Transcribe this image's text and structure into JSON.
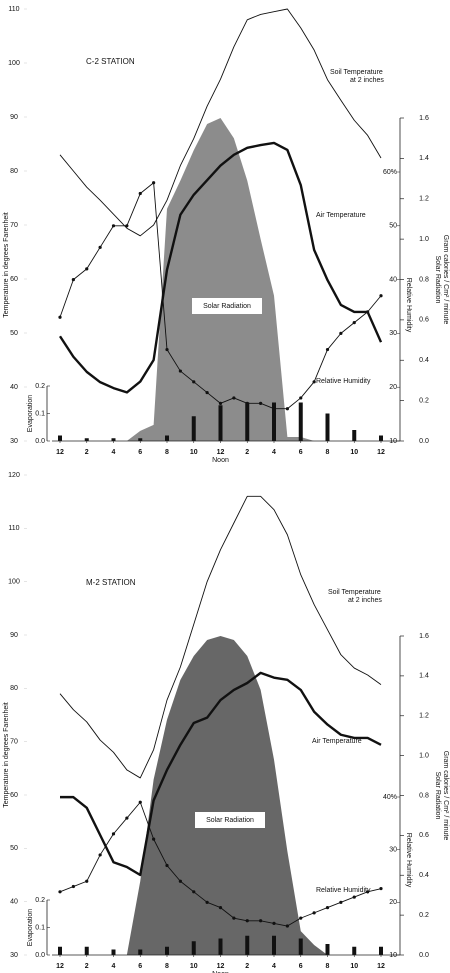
{
  "chart_data": [
    {
      "type": "line",
      "title": "C-2 STATION",
      "y_label": "Temperature in degrees Farenheit",
      "y2_label": [
        "Solar Radiation",
        "Gram calories / Cm² / minute"
      ],
      "y3_label": "Relative Humidity",
      "x_note": "Noon",
      "xlim": [
        0,
        24
      ],
      "xticks": [
        {
          "value": 0,
          "label": "12"
        },
        2,
        4,
        6,
        8,
        10,
        12,
        {
          "value": 14,
          "label": "2"
        },
        {
          "value": 16,
          "label": "4"
        },
        {
          "value": 18,
          "label": "6"
        },
        {
          "value": 20,
          "label": "8"
        },
        {
          "value": 22,
          "label": "10"
        },
        {
          "value": 24,
          "label": "12"
        }
      ],
      "ylim": [
        30,
        110
      ],
      "yticks": [
        30,
        40,
        50,
        60,
        70,
        80,
        90,
        100,
        110
      ],
      "y2lim": [
        0,
        1.6
      ],
      "y2ticks": [
        {
          "value": 0,
          "label": "0.0"
        },
        0.2,
        0.4,
        0.6,
        0.8,
        {
          "value": 1,
          "label": "1.0"
        },
        1.2,
        1.4,
        1.6
      ],
      "y3lim": [
        10,
        60
      ],
      "y3ticks": [
        10,
        20,
        30,
        40,
        50,
        {
          "value": 60,
          "label": "60%"
        }
      ],
      "y4lim": [
        0,
        0.2
      ],
      "y4ticks": [
        {
          "value": 0,
          "label": "0.0"
        },
        0.1,
        0.2
      ],
      "series": [
        {
          "name": "Solar Radiation",
          "style": "area",
          "axis": "y2",
          "color": "#8c8c8c",
          "x": [
            0,
            1,
            2,
            3,
            4,
            5,
            6,
            7,
            8,
            9,
            10,
            11,
            12,
            13,
            14,
            15,
            16,
            17,
            18,
            19,
            20,
            21,
            22,
            23,
            24
          ],
          "values": [
            0,
            0,
            0,
            0,
            0,
            0,
            0.05,
            0.08,
            1.15,
            1.29,
            1.44,
            1.57,
            1.6,
            1.5,
            1.29,
            1.0,
            0.72,
            0.02,
            0.02,
            0,
            0,
            0,
            0,
            0,
            0
          ]
        },
        {
          "name": "Soil Temperature",
          "subtitle": "at 2 inches",
          "style": "line",
          "axis": "y",
          "color": "#111111",
          "width": 0.9,
          "x": [
            0,
            1,
            2,
            3,
            4,
            5,
            6,
            7,
            8,
            9,
            10,
            11,
            12,
            13,
            14,
            15,
            16,
            17,
            18,
            19,
            20,
            21,
            22,
            23,
            24
          ],
          "values": [
            83,
            80,
            77,
            74.6,
            72,
            69.4,
            68,
            70,
            74.6,
            81,
            86,
            92,
            97,
            103,
            108,
            109,
            109.5,
            110,
            106.5,
            102.4,
            96.9,
            93.1,
            89.4,
            86.6,
            82.4
          ]
        },
        {
          "name": "Air Temperature",
          "style": "line",
          "axis": "y",
          "color": "#111111",
          "width": 2.4,
          "x": [
            0,
            1,
            2,
            3,
            4,
            5,
            6,
            7,
            8,
            9,
            10,
            11,
            12,
            13,
            14,
            15,
            16,
            17,
            18,
            19,
            20,
            21,
            22,
            23,
            24
          ],
          "values": [
            49.4,
            45.6,
            42.8,
            40.9,
            39.8,
            39,
            41,
            45,
            61.7,
            71.9,
            75.6,
            78.3,
            81,
            83,
            84.3,
            84.8,
            85.2,
            83.9,
            77.4,
            65.4,
            59.8,
            55.2,
            53.9,
            53.9,
            48.3
          ]
        },
        {
          "name": "Relative Humidity",
          "style": "dots",
          "axis": "y3",
          "color": "#111111",
          "width": 0.9,
          "x": [
            0,
            1,
            2,
            3,
            4,
            5,
            6,
            7,
            8,
            9,
            10,
            11,
            12,
            13,
            14,
            15,
            16,
            17,
            18,
            19,
            20,
            21,
            22,
            23,
            24
          ],
          "values": [
            33,
            40,
            42,
            46,
            50,
            50,
            56,
            58,
            27,
            23,
            21,
            19,
            17,
            18,
            17,
            17,
            16,
            16,
            18,
            21,
            27,
            30,
            32,
            34,
            37
          ]
        },
        {
          "name": "Evaporation",
          "style": "bar",
          "axis": "y4",
          "color": "#111111",
          "x": [
            0,
            2,
            4,
            6,
            8,
            10,
            12,
            14,
            16,
            18,
            20,
            22,
            24
          ],
          "values": [
            0.02,
            0.01,
            0.01,
            0.01,
            0.02,
            0.09,
            0.13,
            0.14,
            0.14,
            0.14,
            0.1,
            0.04,
            0.02
          ]
        }
      ]
    },
    {
      "type": "line",
      "title": "M-2 STATION",
      "y_label": "Temperature in degrees Farenheit",
      "y2_label": [
        "Solar Radiation",
        "Gram calories / Cm² / minute"
      ],
      "y3_label": "Relative Humidity",
      "x_note": "Noon",
      "xlim": [
        0,
        24
      ],
      "xticks": [
        {
          "value": 0,
          "label": "12"
        },
        2,
        4,
        6,
        8,
        10,
        12,
        {
          "value": 14,
          "label": "2"
        },
        {
          "value": 16,
          "label": "4"
        },
        {
          "value": 18,
          "label": "6"
        },
        {
          "value": 20,
          "label": "8"
        },
        {
          "value": 22,
          "label": "10"
        },
        {
          "value": 24,
          "label": "12"
        }
      ],
      "ylim": [
        30,
        120
      ],
      "yticks": [
        30,
        40,
        50,
        60,
        70,
        80,
        90,
        100,
        110,
        120
      ],
      "y2lim": [
        0,
        1.6
      ],
      "y2ticks": [
        {
          "value": 0,
          "label": "0.0"
        },
        0.2,
        0.4,
        0.6,
        0.8,
        {
          "value": 1,
          "label": "1.0"
        },
        1.2,
        1.4,
        1.6
      ],
      "y3lim": [
        10,
        40
      ],
      "y3ticks": [
        10,
        20,
        30,
        {
          "value": 40,
          "label": "40%"
        }
      ],
      "y4lim": [
        0,
        0.2
      ],
      "y4ticks": [
        {
          "value": 0,
          "label": "0.0"
        },
        0.1,
        0.2
      ],
      "series": [
        {
          "name": "Solar Radiation",
          "style": "area",
          "axis": "y2",
          "color": "#676767",
          "x": [
            0,
            1,
            2,
            3,
            4,
            5,
            6,
            7,
            8,
            9,
            10,
            11,
            12,
            13,
            14,
            15,
            16,
            17,
            18,
            19,
            20,
            21,
            22,
            23,
            24
          ],
          "values": [
            0,
            0,
            0,
            0,
            0,
            0,
            0.37,
            0.88,
            1.18,
            1.38,
            1.5,
            1.58,
            1.6,
            1.58,
            1.5,
            1.33,
            0.98,
            0.52,
            0.12,
            0.05,
            0,
            0,
            0,
            0,
            0
          ]
        },
        {
          "name": "Soil Temperature",
          "subtitle": "at 2 inches",
          "style": "line",
          "axis": "y",
          "color": "#111111",
          "width": 0.9,
          "x": [
            0,
            1,
            2,
            3,
            4,
            5,
            6,
            7,
            8,
            9,
            10,
            11,
            12,
            13,
            14,
            15,
            16,
            17,
            18,
            19,
            20,
            21,
            22,
            23,
            24
          ],
          "values": [
            79,
            76,
            73.7,
            70.3,
            68,
            64.7,
            63.2,
            68.5,
            77.8,
            84,
            92,
            100,
            106,
            111,
            116,
            116,
            113.5,
            108.8,
            101.3,
            95.7,
            91,
            86.3,
            83.8,
            82.5,
            80.7
          ]
        },
        {
          "name": "Air Temperature",
          "style": "line",
          "axis": "y",
          "color": "#111111",
          "width": 2.4,
          "x": [
            0,
            1,
            2,
            3,
            4,
            5,
            6,
            7,
            8,
            9,
            10,
            11,
            12,
            13,
            14,
            15,
            16,
            17,
            18,
            19,
            20,
            21,
            22,
            23,
            24
          ],
          "values": [
            59.6,
            59.6,
            57.6,
            52.5,
            47.4,
            46.5,
            45,
            59,
            64.7,
            69.4,
            73.5,
            74.5,
            77.8,
            79.7,
            81,
            82.9,
            82,
            81.6,
            79.7,
            75.6,
            73.2,
            71.3,
            70.7,
            70.7,
            69.4
          ]
        },
        {
          "name": "Relative Humidity",
          "style": "dots",
          "axis": "y3",
          "color": "#111111",
          "width": 0.9,
          "x": [
            0,
            1,
            2,
            3,
            4,
            5,
            6,
            7,
            8,
            9,
            10,
            11,
            12,
            13,
            14,
            15,
            16,
            17,
            18,
            19,
            20,
            21,
            22,
            23,
            24
          ],
          "values": [
            22,
            23,
            24,
            29,
            33,
            36,
            39,
            32,
            27,
            24,
            22,
            20,
            19,
            17,
            16.5,
            16.5,
            16,
            15.5,
            17,
            18,
            19,
            20,
            21,
            22,
            22.6
          ]
        },
        {
          "name": "Evaporation",
          "style": "bar",
          "axis": "y4",
          "color": "#111111",
          "x": [
            0,
            2,
            4,
            6,
            8,
            10,
            12,
            14,
            16,
            18,
            20,
            22,
            24
          ],
          "values": [
            0.03,
            0.03,
            0.02,
            0.02,
            0.03,
            0.05,
            0.06,
            0.07,
            0.07,
            0.06,
            0.04,
            0.03,
            0.03
          ]
        }
      ]
    }
  ]
}
